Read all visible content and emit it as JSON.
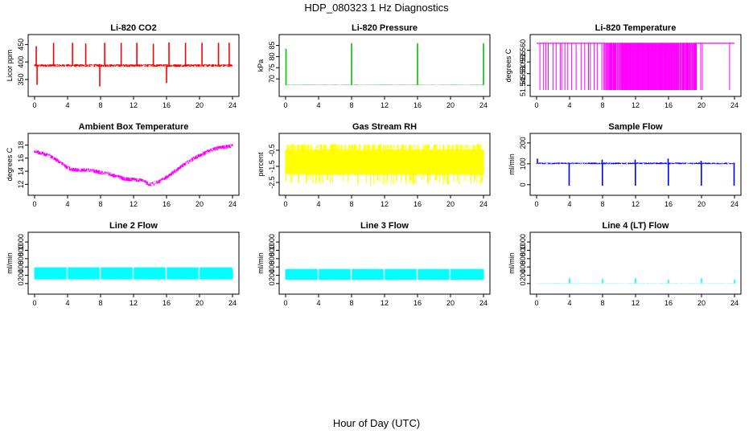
{
  "figure": {
    "title": "HDP_080323  1 Hz Diagnostics",
    "xlabel": "Hour of Day (UTC)",
    "x_ticks": [
      "0",
      "4",
      "8",
      "12",
      "16",
      "20",
      "24"
    ]
  },
  "chart_data": [
    {
      "type": "line",
      "title": "Li-820 CO2",
      "ylabel": "Licor ppm",
      "color": "#ff0000",
      "xlim": [
        0,
        24
      ],
      "ylim": [
        320,
        460
      ],
      "y_ticks": [
        {
          "v": 350,
          "label": "350"
        },
        {
          "v": 400,
          "label": "400"
        },
        {
          "v": 450,
          "label": "450"
        }
      ],
      "baseline": 390,
      "noise": 4,
      "spikes": [
        {
          "x": 0.2,
          "y": 445
        },
        {
          "x": 2.3,
          "y": 455
        },
        {
          "x": 4.6,
          "y": 455
        },
        {
          "x": 6.2,
          "y": 453
        },
        {
          "x": 7.9,
          "y": 330
        },
        {
          "x": 8.5,
          "y": 455
        },
        {
          "x": 10.5,
          "y": 455
        },
        {
          "x": 12.4,
          "y": 455
        },
        {
          "x": 14.4,
          "y": 452
        },
        {
          "x": 16.3,
          "y": 456
        },
        {
          "x": 18.3,
          "y": 455
        },
        {
          "x": 20.3,
          "y": 455
        },
        {
          "x": 22.3,
          "y": 455
        },
        {
          "x": 23.6,
          "y": 455
        },
        {
          "x": 16.0,
          "y": 340
        },
        {
          "x": 0.3,
          "y": 335
        }
      ]
    },
    {
      "type": "line",
      "title": "Li-820 Pressure",
      "ylabel": "kPa",
      "color": "#00c000",
      "xlim": [
        0,
        24
      ],
      "ylim": [
        65,
        87
      ],
      "y_ticks": [
        {
          "v": 70,
          "label": "70"
        },
        {
          "v": 75,
          "label": "75"
        },
        {
          "v": 80,
          "label": "80"
        },
        {
          "v": 85,
          "label": "85"
        }
      ],
      "baseline": 67.3,
      "noise": 0.1,
      "spikes": [
        {
          "x": 0.05,
          "y": 83.5
        },
        {
          "x": 8.0,
          "y": 86
        },
        {
          "x": 16.0,
          "y": 86
        },
        {
          "x": 24.0,
          "y": 86
        }
      ]
    },
    {
      "type": "line",
      "title": "Li-820 Temperature",
      "ylabel": "degrees C",
      "color": "#ff00ff",
      "xlim": [
        0,
        24
      ],
      "ylim": [
        51.543,
        51.564
      ],
      "y_ticks": [
        {
          "v": 51.545,
          "label": "51.545"
        },
        {
          "v": 51.55,
          "label": "51.550"
        },
        {
          "v": 51.555,
          "label": "51.555"
        },
        {
          "v": 51.56,
          "label": "51.560"
        }
      ],
      "baseline": 51.563,
      "drop": 51.543,
      "dense_range": [
        8.2,
        19.4
      ],
      "sparse_range": [
        0.4,
        8.2
      ]
    },
    {
      "type": "line",
      "title": "Ambient Box Temperature",
      "ylabel": "degrees C",
      "color": "#ff00ff",
      "xlim": [
        0,
        24
      ],
      "ylim": [
        11.3,
        18.8
      ],
      "y_ticks": [
        {
          "v": 12,
          "label": "12"
        },
        {
          "v": 14,
          "label": "14"
        },
        {
          "v": 16,
          "label": "16"
        },
        {
          "v": 18,
          "label": "18"
        }
      ],
      "curve": [
        [
          0,
          17.1
        ],
        [
          1,
          16.7
        ],
        [
          2,
          16.3
        ],
        [
          3,
          15.4
        ],
        [
          4,
          14.5
        ],
        [
          5,
          14.2
        ],
        [
          6,
          14.2
        ],
        [
          7,
          14.1
        ],
        [
          8,
          13.8
        ],
        [
          9,
          13.6
        ],
        [
          10,
          13.2
        ],
        [
          11,
          12.8
        ],
        [
          12,
          12.7
        ],
        [
          13,
          12.6
        ],
        [
          14,
          12.0
        ],
        [
          15,
          12.3
        ],
        [
          16,
          13.1
        ],
        [
          17,
          14.0
        ],
        [
          18,
          14.9
        ],
        [
          19,
          15.7
        ],
        [
          20,
          16.4
        ],
        [
          21,
          17.0
        ],
        [
          22,
          17.5
        ],
        [
          23,
          17.7
        ],
        [
          24,
          17.9
        ]
      ],
      "noise": 0.45
    },
    {
      "type": "line",
      "title": "Gas Stream RH",
      "ylabel": "percent",
      "color": "#ffff00",
      "xlim": [
        0,
        24
      ],
      "ylim": [
        -2.9,
        0.15
      ],
      "y_ticks": [
        {
          "v": -2.5,
          "label": "-2.5"
        },
        {
          "v": -1.5,
          "label": "-1.5"
        },
        {
          "v": -0.5,
          "label": "-0.5"
        }
      ],
      "band": [
        -2.05,
        -0.4
      ],
      "extreme": [
        -2.7,
        -0.1
      ]
    },
    {
      "type": "line",
      "title": "Sample Flow",
      "ylabel": "ml/min",
      "color": "#0000ff",
      "xlim": [
        0,
        24
      ],
      "ylim": [
        -20,
        215
      ],
      "y_ticks": [
        {
          "v": 0,
          "label": "0"
        },
        {
          "v": 100,
          "label": "100"
        },
        {
          "v": 200,
          "label": "200"
        }
      ],
      "baseline": 102,
      "noise": 4,
      "spikes": [
        {
          "x": 0.1,
          "y": 125
        },
        {
          "x": 3.95,
          "y": -5
        },
        {
          "x": 7.95,
          "y": 120
        },
        {
          "x": 7.98,
          "y": -5
        },
        {
          "x": 11.95,
          "y": 120
        },
        {
          "x": 11.98,
          "y": -5
        },
        {
          "x": 15.95,
          "y": 125
        },
        {
          "x": 15.98,
          "y": -5
        },
        {
          "x": 19.95,
          "y": 115
        },
        {
          "x": 19.98,
          "y": -5
        },
        {
          "x": 23.95,
          "y": -5
        }
      ]
    },
    {
      "type": "line",
      "title": "Line 2 Flow",
      "ylabel": "ml/min",
      "color": "#00ffff",
      "xlim": [
        0,
        24
      ],
      "ylim": [
        -100,
        1080
      ],
      "y_ticks": [
        {
          "v": 0,
          "label": "0"
        },
        {
          "v": 200,
          "label": "200"
        },
        {
          "v": 400,
          "label": "400"
        },
        {
          "v": 600,
          "label": "600"
        },
        {
          "v": 800,
          "label": "800"
        },
        {
          "v": 1000,
          "label": "1000"
        }
      ],
      "band": [
        100,
        390
      ],
      "gaps": [
        3.95,
        7.95,
        11.95,
        15.95,
        19.95
      ]
    },
    {
      "type": "line",
      "title": "Line 3 Flow",
      "ylabel": "ml/min",
      "color": "#00ffff",
      "xlim": [
        0,
        24
      ],
      "ylim": [
        -100,
        1080
      ],
      "y_ticks": [
        {
          "v": 0,
          "label": "0"
        },
        {
          "v": 200,
          "label": "200"
        },
        {
          "v": 400,
          "label": "400"
        },
        {
          "v": 600,
          "label": "600"
        },
        {
          "v": 800,
          "label": "800"
        },
        {
          "v": 1000,
          "label": "1000"
        }
      ],
      "band": [
        90,
        350
      ],
      "gaps": [
        3.95,
        7.95,
        11.95,
        15.95,
        19.95
      ]
    },
    {
      "type": "line",
      "title": "Line 4 (LT) Flow",
      "ylabel": "ml/min",
      "color": "#00ffff",
      "xlim": [
        0,
        24
      ],
      "ylim": [
        -100,
        1080
      ],
      "y_ticks": [
        {
          "v": 0,
          "label": "0"
        },
        {
          "v": 200,
          "label": "200"
        },
        {
          "v": 400,
          "label": "400"
        },
        {
          "v": 600,
          "label": "600"
        },
        {
          "v": 800,
          "label": "800"
        },
        {
          "v": 1000,
          "label": "1000"
        }
      ],
      "baseline": 5,
      "noise": 3,
      "spikes": [
        {
          "x": 4.0,
          "y": 130
        },
        {
          "x": 8.0,
          "y": 110
        },
        {
          "x": 12.0,
          "y": 130
        },
        {
          "x": 16.0,
          "y": 90
        },
        {
          "x": 20.0,
          "y": 130
        },
        {
          "x": 24.0,
          "y": 95
        }
      ]
    }
  ]
}
